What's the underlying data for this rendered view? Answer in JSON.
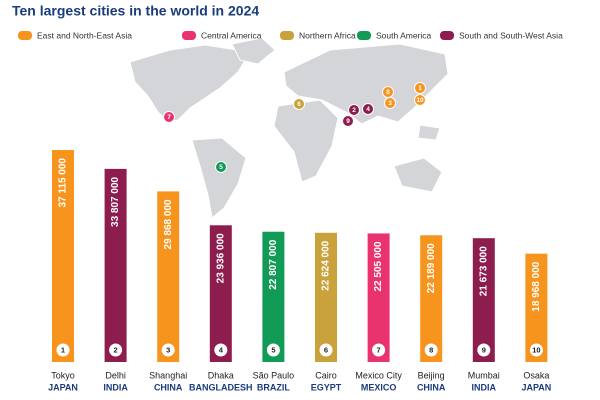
{
  "chart_data": {
    "type": "bar",
    "title": "Ten largest cities in the world in 2024",
    "regions": [
      {
        "name": "East and North-East Asia",
        "color": "#f7941d"
      },
      {
        "name": "Central America",
        "color": "#e8336f"
      },
      {
        "name": "Northern Africa",
        "color": "#c9a23c"
      },
      {
        "name": "South America",
        "color": "#129a57"
      },
      {
        "name": "South and South-West Asia",
        "color": "#8c1d4e"
      }
    ],
    "categories": [
      "Tokyo",
      "Delhi",
      "Shanghai",
      "Dhaka",
      "São Paulo",
      "Cairo",
      "Mexico City",
      "Beijing",
      "Mumbai",
      "Osaka"
    ],
    "countries": [
      "JAPAN",
      "INDIA",
      "CHINA",
      "BANGLADESH",
      "BRAZIL",
      "EGYPT",
      "MEXICO",
      "CHINA",
      "INDIA",
      "JAPAN"
    ],
    "ranks": [
      1,
      2,
      3,
      4,
      5,
      6,
      7,
      8,
      9,
      10
    ],
    "values": [
      37115000,
      33807000,
      29868000,
      23936000,
      22807000,
      22624000,
      22505000,
      22189000,
      21673000,
      18968000
    ],
    "value_labels": [
      "37 115 000",
      "33 807 000",
      "29 868 000",
      "23 936 000",
      "22 807 000",
      "22 624 000",
      "22 505 000",
      "22 189 000",
      "21 673 000",
      "18 968 000"
    ],
    "colors": [
      "#f7941d",
      "#8c1d4e",
      "#f7941d",
      "#8c1d4e",
      "#129a57",
      "#c9a23c",
      "#e8336f",
      "#f7941d",
      "#8c1d4e",
      "#f7941d"
    ]
  }
}
